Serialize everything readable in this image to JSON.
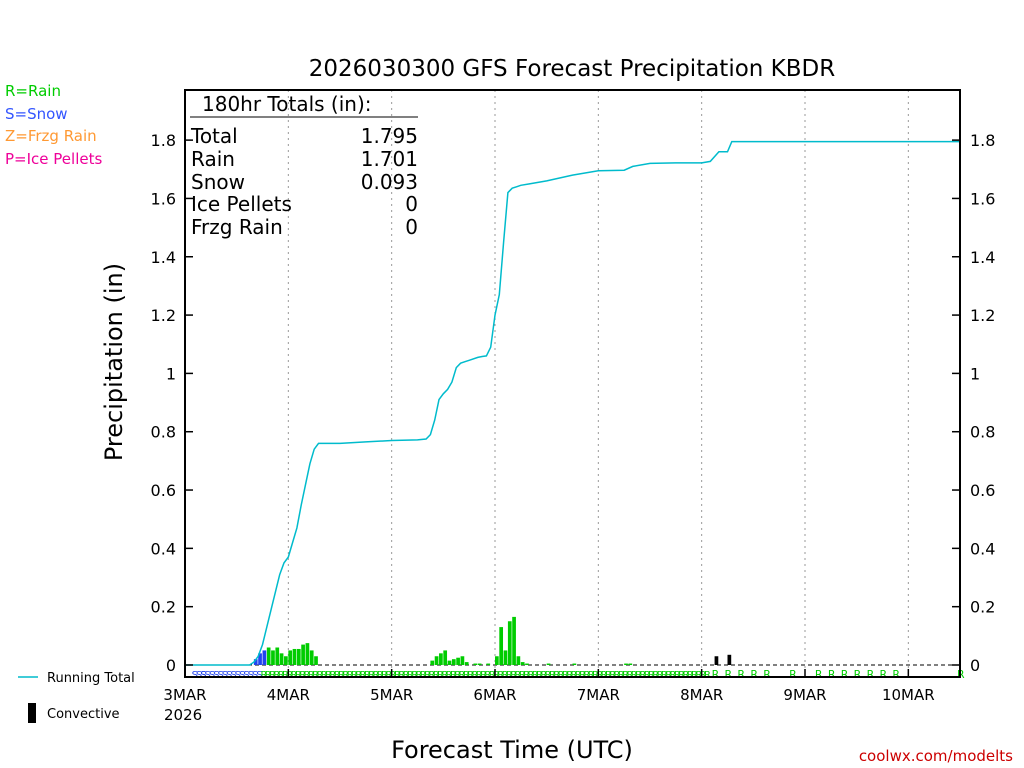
{
  "chart_data": {
    "type": "bar+line",
    "title": "2026030300 GFS Forecast Precipitation KBDR",
    "xlabel": "Forecast Time (UTC)",
    "ylabel": "Precipitation (in)",
    "ylim": [
      -0.05,
      1.96
    ],
    "y_ticks": [
      0,
      0.2,
      0.4,
      0.6,
      0.8,
      1,
      1.2,
      1.4,
      1.6,
      1.8
    ],
    "y_tick_labels": [
      "0",
      "0.2",
      "0.4",
      "0.6",
      "0.8",
      "1",
      "1.2",
      "1.4",
      "1.6",
      "1.8"
    ],
    "xlim_hours": [
      0,
      180
    ],
    "x_ticks": [
      {
        "hour": 0,
        "label": "3MAR"
      },
      {
        "hour": 24,
        "label": "4MAR"
      },
      {
        "hour": 48,
        "label": "5MAR"
      },
      {
        "hour": 72,
        "label": "6MAR"
      },
      {
        "hour": 96,
        "label": "7MAR"
      },
      {
        "hour": 120,
        "label": "8MAR"
      },
      {
        "hour": 144,
        "label": "9MAR"
      },
      {
        "hour": 168,
        "label": "10MAR"
      }
    ],
    "x_year_label": "2026",
    "legend": [
      {
        "label": "R=Rain",
        "color": "#00cc00"
      },
      {
        "label": "S=Snow",
        "color": "#3355ff"
      },
      {
        "label": "Z=Frzg Rain",
        "color": "#ff9933"
      },
      {
        "label": "P=Ice Pellets",
        "color": "#ee0099"
      }
    ],
    "bottom_legend": [
      {
        "label": "Running Total",
        "color": "#00bbcc",
        "kind": "line"
      },
      {
        "label": "Convective",
        "color": "#000000",
        "kind": "bar"
      }
    ],
    "totals": {
      "heading": "180hr Totals (in):",
      "rows": [
        {
          "label": "Total",
          "value": "1.795"
        },
        {
          "label": "Rain",
          "value": "1.701"
        },
        {
          "label": "Snow",
          "value": "0.093"
        },
        {
          "label": "Ice Pellets",
          "value": "0"
        },
        {
          "label": "Frzg Rain",
          "value": "0"
        }
      ]
    },
    "colors": {
      "rain": "#00cc00",
      "snow": "#2244ee",
      "running_total": "#00bbcc",
      "convective": "#000000",
      "grid": "#999999"
    },
    "bar_width_hours": 1,
    "bars": [
      {
        "hour": 16,
        "value": 0.02,
        "type": "snow"
      },
      {
        "hour": 17,
        "value": 0.04,
        "type": "snow"
      },
      {
        "hour": 18,
        "value": 0.05,
        "type": "snow"
      },
      {
        "hour": 19,
        "value": 0.06,
        "type": "rain"
      },
      {
        "hour": 20,
        "value": 0.05,
        "type": "rain"
      },
      {
        "hour": 21,
        "value": 0.06,
        "type": "rain"
      },
      {
        "hour": 22,
        "value": 0.04,
        "type": "rain"
      },
      {
        "hour": 23,
        "value": 0.03,
        "type": "rain"
      },
      {
        "hour": 24,
        "value": 0.05,
        "type": "rain"
      },
      {
        "hour": 25,
        "value": 0.055,
        "type": "rain"
      },
      {
        "hour": 26,
        "value": 0.055,
        "type": "rain"
      },
      {
        "hour": 27,
        "value": 0.07,
        "type": "rain"
      },
      {
        "hour": 28,
        "value": 0.075,
        "type": "rain"
      },
      {
        "hour": 29,
        "value": 0.05,
        "type": "rain"
      },
      {
        "hour": 30,
        "value": 0.03,
        "type": "rain"
      },
      {
        "hour": 57,
        "value": 0.015,
        "type": "rain"
      },
      {
        "hour": 58,
        "value": 0.03,
        "type": "rain"
      },
      {
        "hour": 59,
        "value": 0.04,
        "type": "rain"
      },
      {
        "hour": 60,
        "value": 0.05,
        "type": "rain"
      },
      {
        "hour": 61,
        "value": 0.015,
        "type": "rain"
      },
      {
        "hour": 62,
        "value": 0.02,
        "type": "rain"
      },
      {
        "hour": 63,
        "value": 0.025,
        "type": "rain"
      },
      {
        "hour": 64,
        "value": 0.03,
        "type": "rain"
      },
      {
        "hour": 65,
        "value": 0.01,
        "type": "rain"
      },
      {
        "hour": 67,
        "value": 0.005,
        "type": "rain"
      },
      {
        "hour": 68,
        "value": 0.005,
        "type": "rain"
      },
      {
        "hour": 70,
        "value": 0.005,
        "type": "rain"
      },
      {
        "hour": 72,
        "value": 0.03,
        "type": "rain"
      },
      {
        "hour": 73,
        "value": 0.13,
        "type": "rain"
      },
      {
        "hour": 74,
        "value": 0.05,
        "type": "rain"
      },
      {
        "hour": 75,
        "value": 0.15,
        "type": "rain"
      },
      {
        "hour": 76,
        "value": 0.165,
        "type": "rain"
      },
      {
        "hour": 77,
        "value": 0.03,
        "type": "rain"
      },
      {
        "hour": 78,
        "value": 0.01,
        "type": "rain"
      },
      {
        "hour": 79,
        "value": 0.005,
        "type": "rain"
      },
      {
        "hour": 84,
        "value": 0.005,
        "type": "rain"
      },
      {
        "hour": 90,
        "value": 0.005,
        "type": "rain"
      },
      {
        "hour": 102,
        "value": 0.005,
        "type": "rain"
      },
      {
        "hour": 103,
        "value": 0.005,
        "type": "rain"
      }
    ],
    "convective_bars": [
      {
        "hour": 123,
        "value": 0.03
      },
      {
        "hour": 126,
        "value": 0.035
      }
    ],
    "running_total": {
      "hours": [
        0,
        15,
        16,
        17,
        18,
        19,
        20,
        21,
        22,
        23,
        24,
        25,
        26,
        27,
        28,
        29,
        30,
        31,
        36,
        42,
        48,
        54,
        56,
        57,
        58,
        59,
        60,
        61,
        62,
        63,
        64,
        65,
        66,
        68,
        69,
        70,
        71,
        72,
        73,
        74,
        75,
        76,
        77,
        78,
        80,
        84,
        90,
        96,
        102,
        104,
        108,
        114,
        120,
        122,
        124,
        125,
        126,
        127,
        132,
        140,
        150,
        160,
        170,
        180
      ],
      "values": [
        0,
        0,
        0.01,
        0.03,
        0.07,
        0.13,
        0.19,
        0.25,
        0.31,
        0.35,
        0.37,
        0.42,
        0.47,
        0.55,
        0.62,
        0.69,
        0.74,
        0.76,
        0.76,
        0.765,
        0.77,
        0.772,
        0.775,
        0.79,
        0.84,
        0.91,
        0.93,
        0.945,
        0.97,
        1.02,
        1.035,
        1.04,
        1.045,
        1.055,
        1.058,
        1.06,
        1.09,
        1.2,
        1.27,
        1.45,
        1.62,
        1.635,
        1.64,
        1.645,
        1.65,
        1.66,
        1.68,
        1.695,
        1.697,
        1.71,
        1.72,
        1.722,
        1.722,
        1.727,
        1.76,
        1.76,
        1.76,
        1.795,
        1.795,
        1.795,
        1.795,
        1.795,
        1.795,
        1.795
      ]
    },
    "symbol_rows": [
      {
        "hour_start": 2,
        "hour_end": 4,
        "symbol": "S",
        "row": 1,
        "color": "#2244ee"
      },
      {
        "hour_start": 4,
        "hour_end": 17,
        "symbol": "S",
        "row": 2,
        "color": "#2244ee"
      },
      {
        "hour_start": 18,
        "hour_end": 121,
        "symbol": "R",
        "row": 2,
        "color": "#00cc00"
      }
    ],
    "symbol_hours": [
      {
        "hour": 123,
        "symbol": "R",
        "color": "#00cc00"
      },
      {
        "hour": 126,
        "symbol": "R",
        "color": "#00cc00"
      },
      {
        "hour": 129,
        "symbol": "R",
        "color": "#00cc00"
      },
      {
        "hour": 132,
        "symbol": "R",
        "color": "#00cc00"
      },
      {
        "hour": 135,
        "symbol": "R",
        "color": "#00cc00"
      },
      {
        "hour": 141,
        "symbol": "R",
        "color": "#00cc00"
      },
      {
        "hour": 147,
        "symbol": "R",
        "color": "#00cc00"
      },
      {
        "hour": 150,
        "symbol": "R",
        "color": "#00cc00"
      },
      {
        "hour": 153,
        "symbol": "R",
        "color": "#00cc00"
      },
      {
        "hour": 156,
        "symbol": "R",
        "color": "#00cc00"
      },
      {
        "hour": 159,
        "symbol": "R",
        "color": "#00cc00"
      },
      {
        "hour": 162,
        "symbol": "R",
        "color": "#00cc00"
      },
      {
        "hour": 165,
        "symbol": "R",
        "color": "#00cc00"
      },
      {
        "hour": 180,
        "symbol": "R",
        "color": "#00cc00"
      }
    ],
    "credit": "coolwx.com/modelts",
    "credit_color": "#cc0000"
  }
}
